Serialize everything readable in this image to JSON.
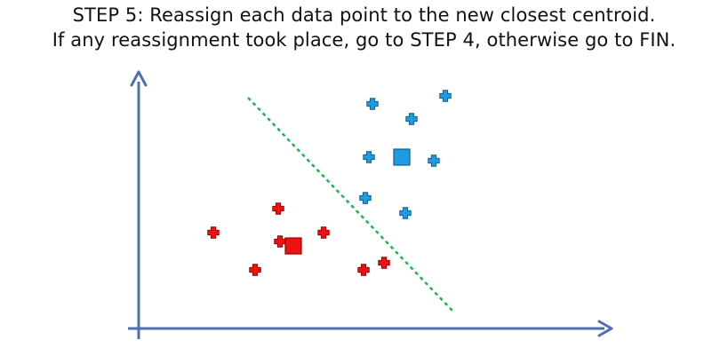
{
  "slide": {
    "line1_label": "STEP 5:",
    "line1_text": " Reassign each data point to the new closest centroid.",
    "line2_text": "If any reassignment took place, go to STEP 4, otherwise go to FIN."
  },
  "colors": {
    "axis": "#4e6fb4",
    "blue_fill": "#1f9bdf",
    "blue_stroke": "#0d5f8f",
    "red_fill": "#ee1111",
    "red_stroke": "#9a0000",
    "boundary": "#19b84f",
    "text": "#111111"
  },
  "icons": {
    "point_marker": "plus-marker-icon",
    "centroid_marker": "square-marker-icon"
  }
}
